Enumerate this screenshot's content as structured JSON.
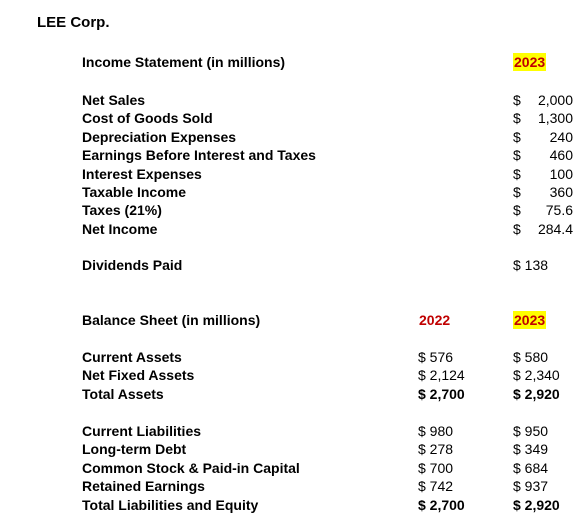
{
  "company": "LEE Corp.",
  "income_statement": {
    "title": "Income Statement (in millions)",
    "year": "2023",
    "rows": [
      {
        "label": "Net Sales",
        "value": "2,000"
      },
      {
        "label": "Cost of Goods Sold",
        "value": "1,300"
      },
      {
        "label": "Depreciation Expenses",
        "value": "240"
      },
      {
        "label": "Earnings Before Interest and Taxes",
        "value": "460"
      },
      {
        "label": "Interest Expenses",
        "value": "100"
      },
      {
        "label": "Taxable Income",
        "value": "360"
      },
      {
        "label": "Taxes (21%)",
        "value": "75.6"
      },
      {
        "label": "Net Income",
        "value": "284.4"
      }
    ],
    "dividends": {
      "label": "Dividends Paid",
      "value": "$ 138"
    }
  },
  "balance_sheet": {
    "title": "Balance Sheet (in millions)",
    "year_prev": "2022",
    "year_curr": "2023",
    "assets": [
      {
        "label": "Current Assets",
        "v2022": "$ 576",
        "v2023": "$ 580"
      },
      {
        "label": "Net Fixed Assets",
        "v2022": "$ 2,124",
        "v2023": "$ 2,340"
      },
      {
        "label": "Total Assets",
        "v2022": "$ 2,700",
        "v2023": "$ 2,920",
        "bold": true
      }
    ],
    "liabilities": [
      {
        "label": "Current Liabilities",
        "v2022": "$ 980",
        "v2023": "$ 950"
      },
      {
        "label": "Long-term Debt",
        "v2022": "$ 278",
        "v2023": "$ 349"
      },
      {
        "label": "Common Stock & Paid-in Capital",
        "v2022": "$ 700",
        "v2023": "$ 684"
      },
      {
        "label": "Retained Earnings",
        "v2022": "$ 742",
        "v2023": "$ 937"
      },
      {
        "label": "Total Liabilities and Equity",
        "v2022": "$ 2,700",
        "v2023": "$ 2,920",
        "bold": true
      }
    ]
  },
  "colors": {
    "year_text": "#c00000",
    "year_highlight": "#ffff00"
  }
}
